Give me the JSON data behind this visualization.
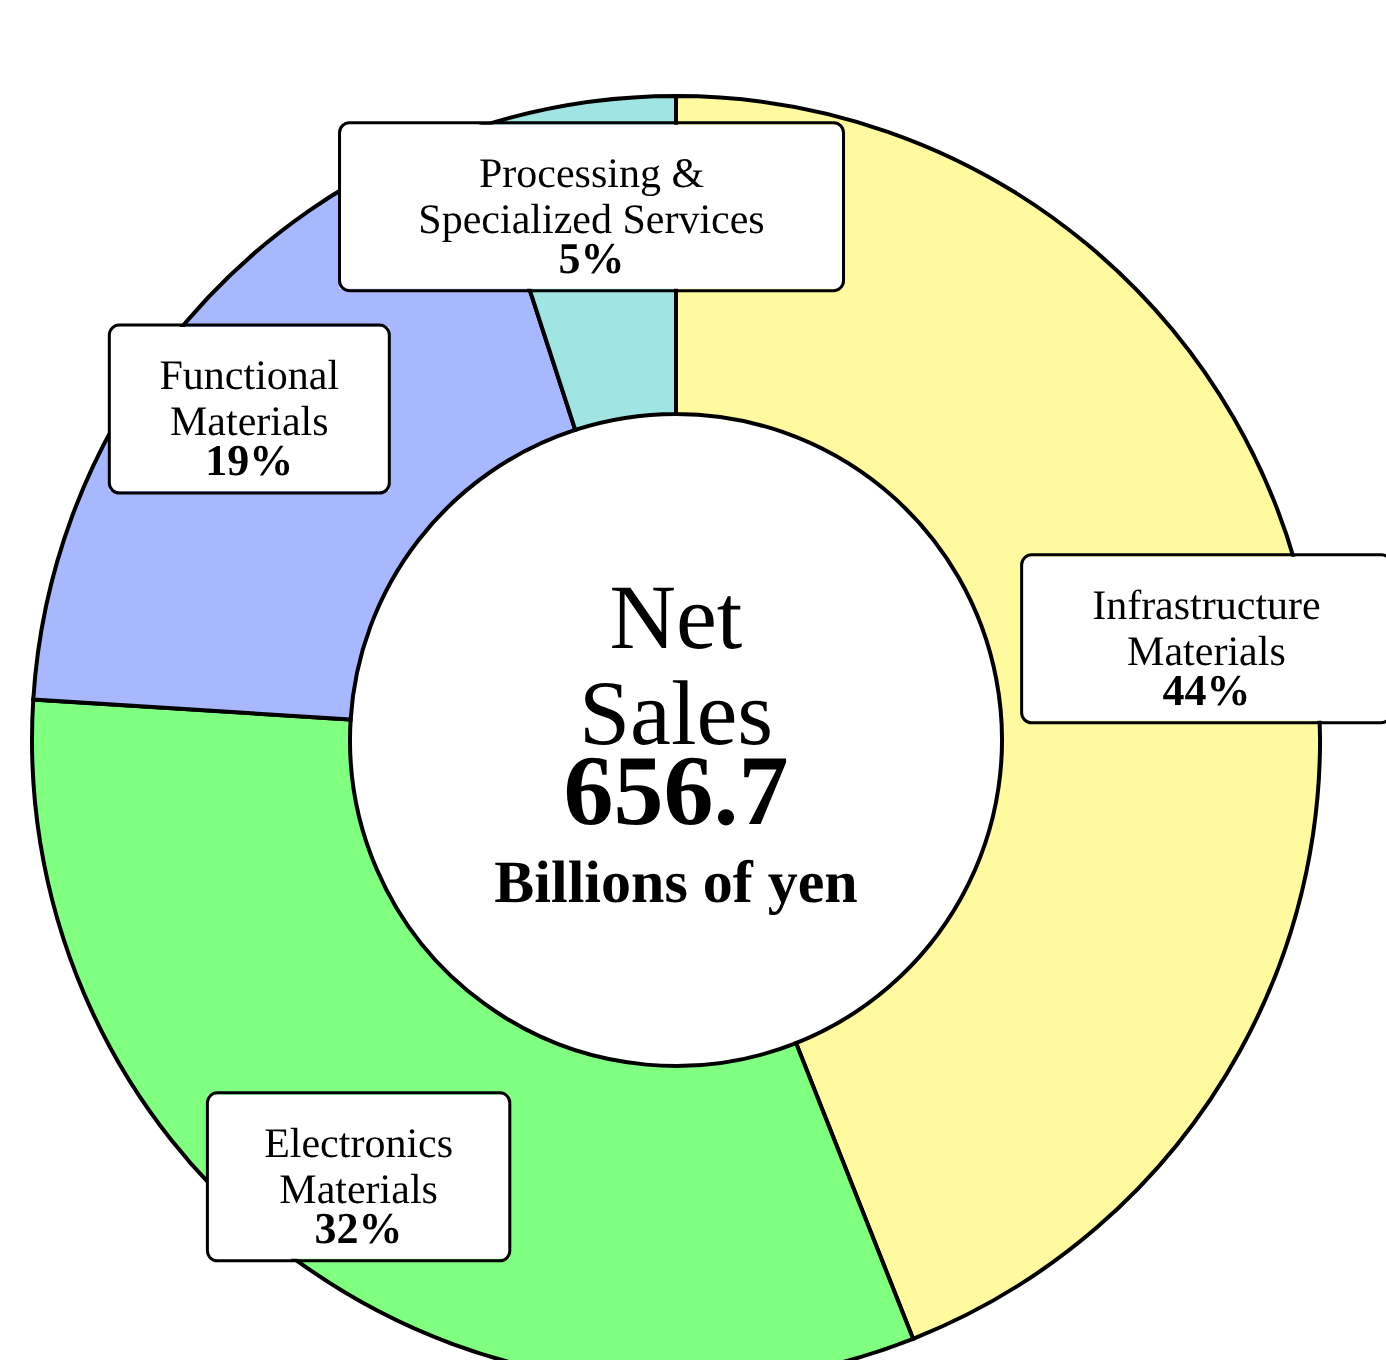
{
  "chart_data": {
    "type": "donut",
    "categories": [
      "Infrastructure Materials",
      "Electronics Materials",
      "Functional Materials",
      "Processing & Specialized Services"
    ],
    "values": [
      44,
      32,
      19,
      5
    ],
    "value_labels": [
      "44%",
      "32%",
      "19%",
      "5%"
    ],
    "colors": [
      "#fffaa0",
      "#80ff80",
      "#a8b8ff",
      "#a0e4e4"
    ],
    "annotations": [
      "Net Sales",
      "656.7",
      "Billions of yen"
    ]
  }
}
